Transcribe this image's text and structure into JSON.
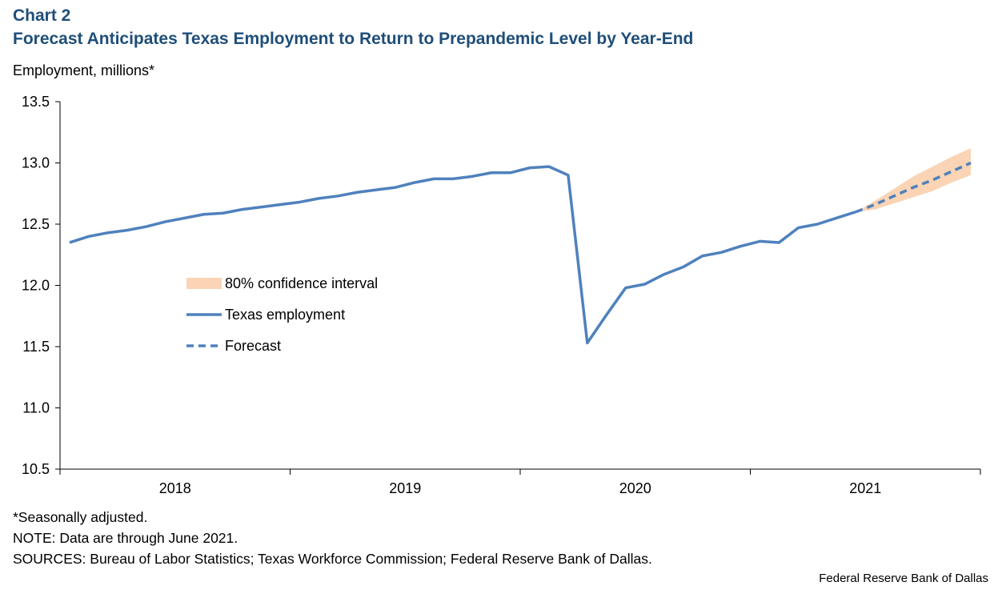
{
  "header": {
    "chart_label": "Chart 2",
    "title": "Forecast Anticipates Texas Employment to Return to Prepandemic Level by Year-End"
  },
  "footer": {
    "seasonal_note": "*Seasonally adjusted.",
    "note": "NOTE: Data are through June 2021.",
    "sources": "SOURCES: Bureau of Labor Statistics; Texas Workforce Commission; Federal Reserve Bank of Dallas.",
    "credit": "Federal Reserve Bank of Dallas"
  },
  "colors": {
    "series": "#4f81bd",
    "band": "#fad4b4",
    "title": "#1f4e79"
  },
  "chart_data": {
    "type": "line",
    "ylabel": "Employment, millions*",
    "ylim": [
      10.5,
      13.5
    ],
    "yticks": [
      10.5,
      11.0,
      11.5,
      12.0,
      12.5,
      13.0,
      13.5
    ],
    "year_labels": [
      "2018",
      "2019",
      "2020",
      "2021"
    ],
    "legend": {
      "placement": "center-left",
      "entries": [
        "80% confidence interval",
        "Texas employment",
        "Forecast"
      ]
    },
    "series": [
      {
        "name": "Texas employment",
        "style": "solid",
        "values": [
          12.35,
          12.4,
          12.43,
          12.45,
          12.48,
          12.52,
          12.55,
          12.58,
          12.59,
          12.62,
          12.64,
          12.66,
          12.68,
          12.71,
          12.73,
          12.76,
          12.78,
          12.8,
          12.84,
          12.87,
          12.87,
          12.89,
          12.92,
          12.92,
          12.96,
          12.97,
          12.9,
          11.53,
          11.76,
          11.98,
          12.01,
          12.09,
          12.15,
          12.24,
          12.27,
          12.32,
          12.36,
          12.35,
          12.47,
          12.5,
          12.55,
          12.6
        ]
      },
      {
        "name": "Forecast",
        "style": "dashed",
        "values": [
          12.6,
          12.66,
          12.73,
          12.8,
          12.86,
          12.93,
          13.0
        ]
      }
    ],
    "confidence_band": {
      "name": "80% confidence interval",
      "lower": [
        12.6,
        12.62,
        12.67,
        12.72,
        12.77,
        12.84,
        12.9
      ],
      "upper": [
        12.6,
        12.69,
        12.79,
        12.89,
        12.97,
        13.05,
        13.12
      ]
    }
  }
}
